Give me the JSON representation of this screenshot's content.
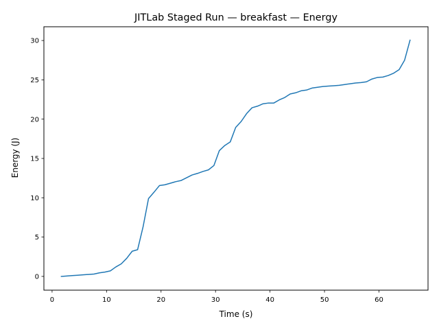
{
  "chart_data": {
    "type": "line",
    "title": "JITLab Staged Run — breakfast — Energy",
    "xlabel": "Time (s)",
    "ylabel": "Energy (J)",
    "xlim": [
      -1.5,
      69.0
    ],
    "ylim": [
      -1.75,
      31.75
    ],
    "xticks": [
      0,
      10,
      20,
      30,
      40,
      50,
      60
    ],
    "xtick_labels": [
      "0",
      "10",
      "20",
      "30",
      "40",
      "50",
      "60"
    ],
    "yticks": [
      0,
      5,
      10,
      15,
      20,
      25,
      30
    ],
    "ytick_labels": [
      "0",
      "5",
      "10",
      "15",
      "20",
      "25",
      "30"
    ],
    "grid": false,
    "legend": "none",
    "series": [
      {
        "color": "#1f77b4",
        "x": [
          1.7,
          2.7,
          3.7,
          4.7,
          5.7,
          6.7,
          7.7,
          8.7,
          9.7,
          10.7,
          11.7,
          12.7,
          13.7,
          14.7,
          15.7,
          16.7,
          17.7,
          18.7,
          19.7,
          20.7,
          21.7,
          22.7,
          23.7,
          24.7,
          25.7,
          26.7,
          27.7,
          28.7,
          29.7,
          30.7,
          31.7,
          32.7,
          33.7,
          34.7,
          35.7,
          36.7,
          37.7,
          38.7,
          39.7,
          40.7,
          41.7,
          42.7,
          43.7,
          44.7,
          45.7,
          46.7,
          47.7,
          48.7,
          49.7,
          50.7,
          51.7,
          52.7,
          53.7,
          54.7,
          55.7,
          56.7,
          57.7,
          58.7,
          59.7,
          60.7,
          61.7,
          62.7,
          63.7,
          64.7,
          65.7
        ],
        "y": [
          0.0,
          0.05,
          0.1,
          0.15,
          0.2,
          0.25,
          0.3,
          0.45,
          0.55,
          0.7,
          1.2,
          1.6,
          2.3,
          3.2,
          3.4,
          6.3,
          9.9,
          10.7,
          11.55,
          11.65,
          11.85,
          12.05,
          12.2,
          12.55,
          12.9,
          13.1,
          13.35,
          13.55,
          14.1,
          16.0,
          16.65,
          17.1,
          18.95,
          19.7,
          20.7,
          21.45,
          21.65,
          21.95,
          22.05,
          22.05,
          22.45,
          22.75,
          23.2,
          23.35,
          23.6,
          23.7,
          23.95,
          24.05,
          24.15,
          24.2,
          24.25,
          24.3,
          24.4,
          24.5,
          24.6,
          24.65,
          24.75,
          25.1,
          25.3,
          25.35,
          25.55,
          25.85,
          26.3,
          27.5,
          30.05
        ]
      }
    ]
  }
}
